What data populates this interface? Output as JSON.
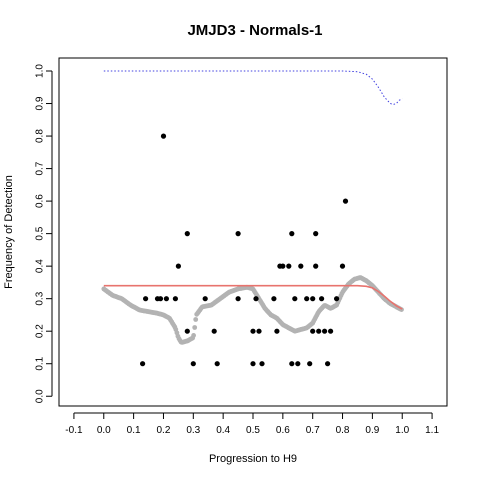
{
  "chart_data": {
    "type": "scatter",
    "title": "JMJD3 - Normals-1",
    "xlabel": "Progression to H9",
    "ylabel": "Frequency of Detection",
    "xlim": [
      -0.15,
      1.15
    ],
    "ylim": [
      -0.03,
      1.04
    ],
    "x_ticks": [
      -0.1,
      0.0,
      0.1,
      0.2,
      0.3,
      0.4,
      0.5,
      0.6,
      0.7,
      0.8,
      0.9,
      1.0,
      1.1
    ],
    "x_tick_labels": [
      "-0.1",
      "0.0",
      "0.1",
      "0.2",
      "0.3",
      "0.4",
      "0.5",
      "0.6",
      "0.7",
      "0.8",
      "0.9",
      "1.0",
      "1.1"
    ],
    "y_ticks": [
      0.0,
      0.1,
      0.2,
      0.3,
      0.4,
      0.5,
      0.6,
      0.7,
      0.8,
      0.9,
      1.0
    ],
    "y_tick_labels": [
      "0.0",
      "0.1",
      "0.2",
      "0.3",
      "0.4",
      "0.5",
      "0.6",
      "0.7",
      "0.8",
      "0.9",
      "1.0"
    ],
    "grid": false,
    "colors": {
      "points": "#000000",
      "smooth": "#b3b3b3",
      "fit": "#e8736e",
      "upper": "#4040e0"
    },
    "series": [
      {
        "kind": "points",
        "x": [
          0.13,
          0.14,
          0.18,
          0.19,
          0.2,
          0.21,
          0.24,
          0.25,
          0.28,
          0.28,
          0.3,
          0.34,
          0.37,
          0.38,
          0.45,
          0.45,
          0.5,
          0.5,
          0.51,
          0.52,
          0.53,
          0.57,
          0.58,
          0.59,
          0.6,
          0.62,
          0.63,
          0.63,
          0.64,
          0.65,
          0.66,
          0.68,
          0.69,
          0.7,
          0.7,
          0.71,
          0.71,
          0.72,
          0.73,
          0.74,
          0.75,
          0.76,
          0.78,
          0.8,
          0.81
        ],
        "y": [
          0.1,
          0.3,
          0.3,
          0.3,
          0.8,
          0.3,
          0.3,
          0.4,
          0.5,
          0.2,
          0.1,
          0.3,
          0.2,
          0.1,
          0.5,
          0.3,
          0.2,
          0.1,
          0.3,
          0.2,
          0.1,
          0.3,
          0.2,
          0.4,
          0.4,
          0.4,
          0.1,
          0.5,
          0.3,
          0.1,
          0.4,
          0.3,
          0.1,
          0.2,
          0.3,
          0.5,
          0.4,
          0.2,
          0.3,
          0.2,
          0.1,
          0.2,
          0.3,
          0.4,
          0.6
        ]
      },
      {
        "kind": "smooth",
        "x": [
          0.0,
          0.03,
          0.06,
          0.09,
          0.12,
          0.15,
          0.18,
          0.2,
          0.22,
          0.24,
          0.25,
          0.26,
          0.28,
          0.3,
          0.31,
          0.33,
          0.36,
          0.39,
          0.42,
          0.45,
          0.48,
          0.5,
          0.52,
          0.54,
          0.56,
          0.58,
          0.6,
          0.62,
          0.64,
          0.66,
          0.68,
          0.7,
          0.72,
          0.74,
          0.76,
          0.78,
          0.8,
          0.82,
          0.84,
          0.86,
          0.88,
          0.9,
          0.92,
          0.94,
          0.96,
          0.98,
          1.0
        ],
        "y": [
          0.33,
          0.31,
          0.3,
          0.28,
          0.265,
          0.26,
          0.255,
          0.25,
          0.24,
          0.21,
          0.18,
          0.165,
          0.17,
          0.18,
          0.25,
          0.275,
          0.28,
          0.3,
          0.32,
          0.33,
          0.335,
          0.33,
          0.3,
          0.27,
          0.25,
          0.24,
          0.22,
          0.21,
          0.2,
          0.205,
          0.21,
          0.225,
          0.26,
          0.28,
          0.27,
          0.28,
          0.32,
          0.345,
          0.36,
          0.365,
          0.355,
          0.34,
          0.32,
          0.3,
          0.285,
          0.275,
          0.265
        ]
      },
      {
        "kind": "fit",
        "x": [
          0.0,
          0.1,
          0.2,
          0.3,
          0.4,
          0.5,
          0.6,
          0.7,
          0.8,
          0.85,
          0.88,
          0.9,
          0.92,
          0.94,
          0.96,
          0.98,
          1.0
        ],
        "y": [
          0.34,
          0.34,
          0.34,
          0.34,
          0.34,
          0.34,
          0.34,
          0.34,
          0.34,
          0.34,
          0.338,
          0.333,
          0.322,
          0.308,
          0.292,
          0.278,
          0.268
        ]
      },
      {
        "kind": "upper",
        "x": [
          0.0,
          0.2,
          0.4,
          0.6,
          0.8,
          0.85,
          0.88,
          0.9,
          0.92,
          0.94,
          0.96,
          0.97,
          0.98,
          0.99,
          1.0
        ],
        "y": [
          1.0,
          1.0,
          1.0,
          1.0,
          1.0,
          0.998,
          0.99,
          0.975,
          0.95,
          0.92,
          0.9,
          0.897,
          0.9,
          0.91,
          0.915
        ]
      }
    ]
  }
}
